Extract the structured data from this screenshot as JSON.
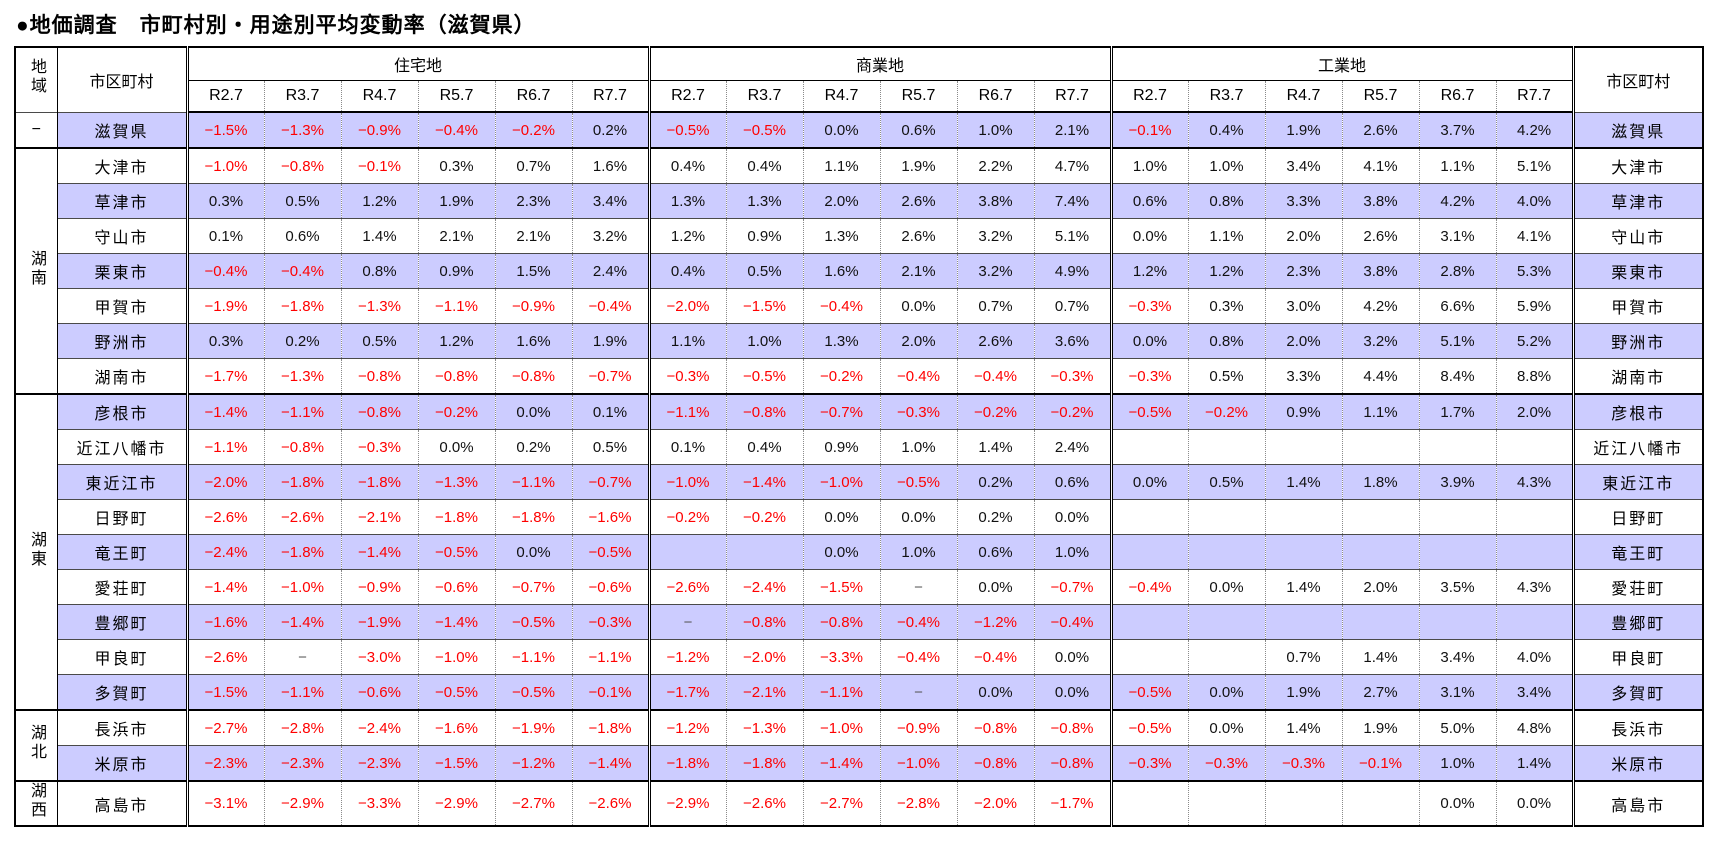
{
  "title": "●地価調査　市町村別・用途別平均変動率（滋賀県）",
  "colors": {
    "row_shade": "#ccccff",
    "negative_value": "#ff0000",
    "positive_value": "#111111",
    "dash_value": "#595959"
  },
  "table": {
    "headers": {
      "region": "地域",
      "municipality": "市区町村",
      "municipality_right": "市区町村",
      "groups": [
        "住宅地",
        "商業地",
        "工業地"
      ],
      "years": [
        "R2.7",
        "R3.7",
        "R4.7",
        "R5.7",
        "R6.7",
        "R7.7"
      ]
    },
    "regions": [
      {
        "label": "−",
        "rows": 1
      },
      {
        "label": "湖南",
        "rows": 7
      },
      {
        "label": "湖東",
        "rows": 9
      },
      {
        "label": "湖北",
        "rows": 2
      },
      {
        "label": "湖西",
        "rows": 1
      }
    ],
    "rows": [
      {
        "municipality": "滋賀県",
        "shaded": true,
        "residential": [
          "−1.5%",
          "−1.3%",
          "−0.9%",
          "−0.4%",
          "−0.2%",
          "0.2%"
        ],
        "commercial": [
          "−0.5%",
          "−0.5%",
          "0.0%",
          "0.6%",
          "1.0%",
          "2.1%"
        ],
        "industrial": [
          "−0.1%",
          "0.4%",
          "1.9%",
          "2.6%",
          "3.7%",
          "4.2%"
        ]
      },
      {
        "municipality": "大津市",
        "shaded": false,
        "residential": [
          "−1.0%",
          "−0.8%",
          "−0.1%",
          "0.3%",
          "0.7%",
          "1.6%"
        ],
        "commercial": [
          "0.4%",
          "0.4%",
          "1.1%",
          "1.9%",
          "2.2%",
          "4.7%"
        ],
        "industrial": [
          "1.0%",
          "1.0%",
          "3.4%",
          "4.1%",
          "1.1%",
          "5.1%"
        ]
      },
      {
        "municipality": "草津市",
        "shaded": true,
        "residential": [
          "0.3%",
          "0.5%",
          "1.2%",
          "1.9%",
          "2.3%",
          "3.4%"
        ],
        "commercial": [
          "1.3%",
          "1.3%",
          "2.0%",
          "2.6%",
          "3.8%",
          "7.4%"
        ],
        "industrial": [
          "0.6%",
          "0.8%",
          "3.3%",
          "3.8%",
          "4.2%",
          "4.0%"
        ]
      },
      {
        "municipality": "守山市",
        "shaded": false,
        "residential": [
          "0.1%",
          "0.6%",
          "1.4%",
          "2.1%",
          "2.1%",
          "3.2%"
        ],
        "commercial": [
          "1.2%",
          "0.9%",
          "1.3%",
          "2.6%",
          "3.2%",
          "5.1%"
        ],
        "industrial": [
          "0.0%",
          "1.1%",
          "2.0%",
          "2.6%",
          "3.1%",
          "4.1%"
        ]
      },
      {
        "municipality": "栗東市",
        "shaded": true,
        "residential": [
          "−0.4%",
          "−0.4%",
          "0.8%",
          "0.9%",
          "1.5%",
          "2.4%"
        ],
        "commercial": [
          "0.4%",
          "0.5%",
          "1.6%",
          "2.1%",
          "3.2%",
          "4.9%"
        ],
        "industrial": [
          "1.2%",
          "1.2%",
          "2.3%",
          "3.8%",
          "2.8%",
          "5.3%"
        ]
      },
      {
        "municipality": "甲賀市",
        "shaded": false,
        "residential": [
          "−1.9%",
          "−1.8%",
          "−1.3%",
          "−1.1%",
          "−0.9%",
          "−0.4%"
        ],
        "commercial": [
          "−2.0%",
          "−1.5%",
          "−0.4%",
          "0.0%",
          "0.7%",
          "0.7%"
        ],
        "industrial": [
          "−0.3%",
          "0.3%",
          "3.0%",
          "4.2%",
          "6.6%",
          "5.9%"
        ]
      },
      {
        "municipality": "野洲市",
        "shaded": true,
        "residential": [
          "0.3%",
          "0.2%",
          "0.5%",
          "1.2%",
          "1.6%",
          "1.9%"
        ],
        "commercial": [
          "1.1%",
          "1.0%",
          "1.3%",
          "2.0%",
          "2.6%",
          "3.6%"
        ],
        "industrial": [
          "0.0%",
          "0.8%",
          "2.0%",
          "3.2%",
          "5.1%",
          "5.2%"
        ]
      },
      {
        "municipality": "湖南市",
        "shaded": false,
        "residential": [
          "−1.7%",
          "−1.3%",
          "−0.8%",
          "−0.8%",
          "−0.8%",
          "−0.7%"
        ],
        "commercial": [
          "−0.3%",
          "−0.5%",
          "−0.2%",
          "−0.4%",
          "−0.4%",
          "−0.3%"
        ],
        "industrial": [
          "−0.3%",
          "0.5%",
          "3.3%",
          "4.4%",
          "8.4%",
          "8.8%"
        ]
      },
      {
        "municipality": "彦根市",
        "shaded": true,
        "residential": [
          "−1.4%",
          "−1.1%",
          "−0.8%",
          "−0.2%",
          "0.0%",
          "0.1%"
        ],
        "commercial": [
          "−1.1%",
          "−0.8%",
          "−0.7%",
          "−0.3%",
          "−0.2%",
          "−0.2%"
        ],
        "industrial": [
          "−0.5%",
          "−0.2%",
          "0.9%",
          "1.1%",
          "1.7%",
          "2.0%"
        ]
      },
      {
        "municipality": "近江八幡市",
        "shaded": false,
        "residential": [
          "−1.1%",
          "−0.8%",
          "−0.3%",
          "0.0%",
          "0.2%",
          "0.5%"
        ],
        "commercial": [
          "0.1%",
          "0.4%",
          "0.9%",
          "1.0%",
          "1.4%",
          "2.4%"
        ],
        "industrial": [
          "",
          "",
          "",
          "",
          "",
          ""
        ]
      },
      {
        "municipality": "東近江市",
        "shaded": true,
        "residential": [
          "−2.0%",
          "−1.8%",
          "−1.8%",
          "−1.3%",
          "−1.1%",
          "−0.7%"
        ],
        "commercial": [
          "−1.0%",
          "−1.4%",
          "−1.0%",
          "−0.5%",
          "0.2%",
          "0.6%"
        ],
        "industrial": [
          "0.0%",
          "0.5%",
          "1.4%",
          "1.8%",
          "3.9%",
          "4.3%"
        ]
      },
      {
        "municipality": "日野町",
        "shaded": false,
        "residential": [
          "−2.6%",
          "−2.6%",
          "−2.1%",
          "−1.8%",
          "−1.8%",
          "−1.6%"
        ],
        "commercial": [
          "−0.2%",
          "−0.2%",
          "0.0%",
          "0.0%",
          "0.2%",
          "0.0%"
        ],
        "industrial": [
          "",
          "",
          "",
          "",
          "",
          ""
        ]
      },
      {
        "municipality": "竜王町",
        "shaded": true,
        "residential": [
          "−2.4%",
          "−1.8%",
          "−1.4%",
          "−0.5%",
          "0.0%",
          "−0.5%"
        ],
        "commercial": [
          "",
          "",
          "0.0%",
          "1.0%",
          "0.6%",
          "1.0%"
        ],
        "industrial": [
          "",
          "",
          "",
          "",
          "",
          ""
        ]
      },
      {
        "municipality": "愛荘町",
        "shaded": false,
        "residential": [
          "−1.4%",
          "−1.0%",
          "−0.9%",
          "−0.6%",
          "−0.7%",
          "−0.6%"
        ],
        "commercial": [
          "−2.6%",
          "−2.4%",
          "−1.5%",
          "−",
          "0.0%",
          "−0.7%"
        ],
        "industrial": [
          "−0.4%",
          "0.0%",
          "1.4%",
          "2.0%",
          "3.5%",
          "4.3%"
        ]
      },
      {
        "municipality": "豊郷町",
        "shaded": true,
        "residential": [
          "−1.6%",
          "−1.4%",
          "−1.9%",
          "−1.4%",
          "−0.5%",
          "−0.3%"
        ],
        "commercial": [
          "−",
          "−0.8%",
          "−0.8%",
          "−0.4%",
          "−1.2%",
          "−0.4%"
        ],
        "industrial": [
          "",
          "",
          "",
          "",
          "",
          ""
        ]
      },
      {
        "municipality": "甲良町",
        "shaded": false,
        "residential": [
          "−2.6%",
          "−",
          "−3.0%",
          "−1.0%",
          "−1.1%",
          "−1.1%"
        ],
        "commercial": [
          "−1.2%",
          "−2.0%",
          "−3.3%",
          "−0.4%",
          "−0.4%",
          "0.0%"
        ],
        "industrial": [
          "",
          "",
          "0.7%",
          "1.4%",
          "3.4%",
          "4.0%"
        ]
      },
      {
        "municipality": "多賀町",
        "shaded": true,
        "residential": [
          "−1.5%",
          "−1.1%",
          "−0.6%",
          "−0.5%",
          "−0.5%",
          "−0.1%"
        ],
        "commercial": [
          "−1.7%",
          "−2.1%",
          "−1.1%",
          "−",
          "0.0%",
          "0.0%"
        ],
        "industrial": [
          "−0.5%",
          "0.0%",
          "1.9%",
          "2.7%",
          "3.1%",
          "3.4%"
        ]
      },
      {
        "municipality": "長浜市",
        "shaded": false,
        "residential": [
          "−2.7%",
          "−2.8%",
          "−2.4%",
          "−1.6%",
          "−1.9%",
          "−1.8%"
        ],
        "commercial": [
          "−1.2%",
          "−1.3%",
          "−1.0%",
          "−0.9%",
          "−0.8%",
          "−0.8%"
        ],
        "industrial": [
          "−0.5%",
          "0.0%",
          "1.4%",
          "1.9%",
          "5.0%",
          "4.8%"
        ]
      },
      {
        "municipality": "米原市",
        "shaded": true,
        "residential": [
          "−2.3%",
          "−2.3%",
          "−2.3%",
          "−1.5%",
          "−1.2%",
          "−1.4%"
        ],
        "commercial": [
          "−1.8%",
          "−1.8%",
          "−1.4%",
          "−1.0%",
          "−0.8%",
          "−0.8%"
        ],
        "industrial": [
          "−0.3%",
          "−0.3%",
          "−0.3%",
          "−0.1%",
          "1.0%",
          "1.4%"
        ]
      },
      {
        "municipality": "高島市",
        "shaded": false,
        "residential": [
          "−3.1%",
          "−2.9%",
          "−3.3%",
          "−2.9%",
          "−2.7%",
          "−2.6%"
        ],
        "commercial": [
          "−2.9%",
          "−2.6%",
          "−2.7%",
          "−2.8%",
          "−2.0%",
          "−1.7%"
        ],
        "industrial": [
          "",
          "",
          "",
          "",
          "0.0%",
          "0.0%"
        ]
      }
    ]
  }
}
